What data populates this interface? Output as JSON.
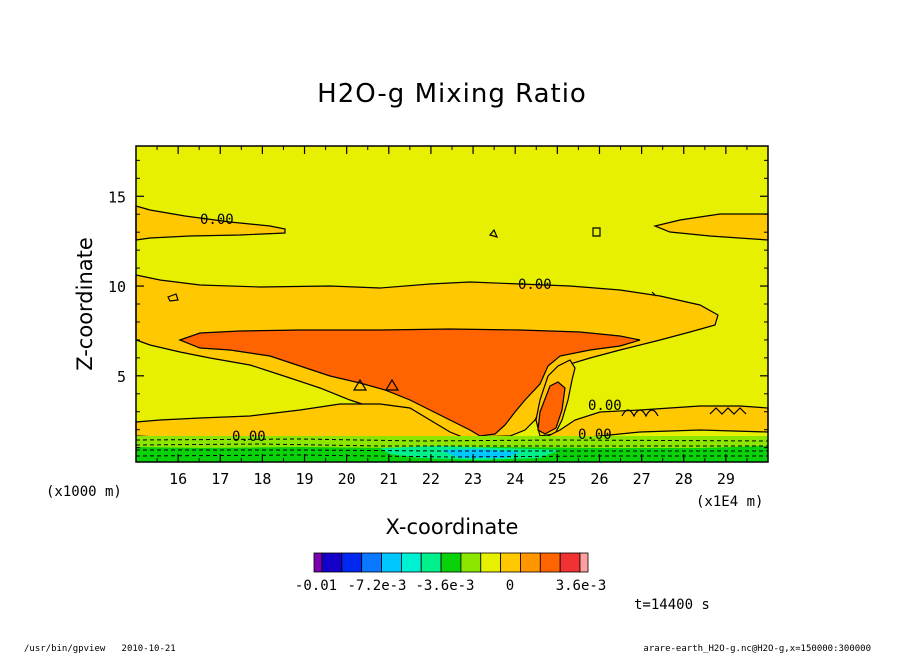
{
  "chart_data": {
    "type": "contour",
    "title": "H2O-g Mixing Ratio",
    "xlabel": "X-coordinate",
    "ylabel": "Z-coordinate",
    "x_unit_label": "(x1E4 m)",
    "y_unit_label": "(x1000 m)",
    "x_ticks": [
      "16",
      "17",
      "18",
      "19",
      "20",
      "21",
      "22",
      "23",
      "24",
      "25",
      "26",
      "27",
      "28",
      "29"
    ],
    "x_tick_values": [
      16,
      17,
      18,
      19,
      20,
      21,
      22,
      23,
      24,
      25,
      26,
      27,
      28,
      29
    ],
    "y_ticks": [
      "5",
      "10",
      "15"
    ],
    "y_tick_values": [
      5,
      10,
      15
    ],
    "xlim": [
      15,
      30
    ],
    "ylim": [
      0.2,
      17.8
    ],
    "colorbar": {
      "labels": [
        "-0.01",
        "-7.2e-3",
        "-3.6e-3",
        "0",
        "3.6e-3"
      ],
      "colors": [
        "#7a00b0",
        "#1400c8",
        "#0028f0",
        "#0a78ff",
        "#00c8ff",
        "#00f0d2",
        "#00f08c",
        "#0ad20a",
        "#8ce600",
        "#e6f000",
        "#ffc800",
        "#ff9600",
        "#ff6400",
        "#f03232",
        "#ffa0a0"
      ]
    },
    "contour_labels": [
      "0.00",
      "0.00",
      "0.00",
      "0.00",
      "0.00"
    ],
    "time_label": "t=14400 s"
  },
  "footer": {
    "left": "/usr/bin/gpview   2010-10-21",
    "right": "arare-earth_H2O-g.nc@H2O-g,x=150000:300000"
  }
}
